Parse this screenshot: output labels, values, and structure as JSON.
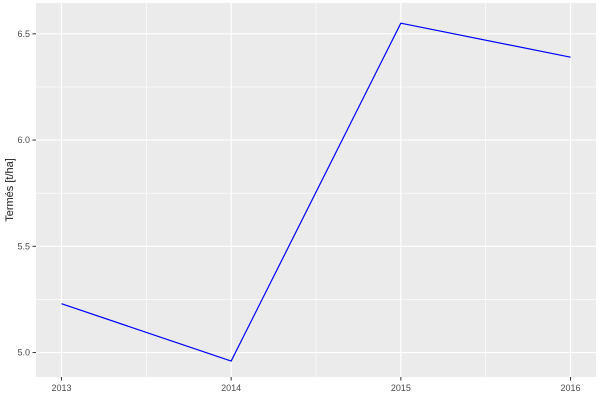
{
  "chart_data": {
    "type": "line",
    "title": "",
    "xlabel": "",
    "ylabel": "Termés [t/ha]",
    "x": [
      2013,
      2014,
      2015,
      2016
    ],
    "x_tick_labels": [
      "2013",
      "2014",
      "2015",
      "2016"
    ],
    "y_ticks": [
      5.0,
      5.5,
      6.0,
      6.5
    ],
    "y_tick_labels": [
      "5.0",
      "5.5",
      "6.0",
      "6.5"
    ],
    "x_minor_ticks": [
      2013.5,
      2014.5,
      2015.5
    ],
    "y_minor_ticks": [
      5.25,
      5.75,
      6.25
    ],
    "xlim": [
      2012.85,
      2016.15
    ],
    "ylim": [
      4.885,
      6.645
    ],
    "grid": true,
    "legend": "none",
    "series": [
      {
        "name": "Termés [t/ha]",
        "values": [
          5.23,
          4.96,
          6.55,
          6.39
        ],
        "color": "#0000FF"
      }
    ],
    "colors": {
      "panel_background": "#EBEBEB",
      "gridline": "#FFFFFF",
      "tick_mark": "#333333",
      "tick_label": "#4D4D4D",
      "axis_title": "#1A1A1A"
    }
  }
}
